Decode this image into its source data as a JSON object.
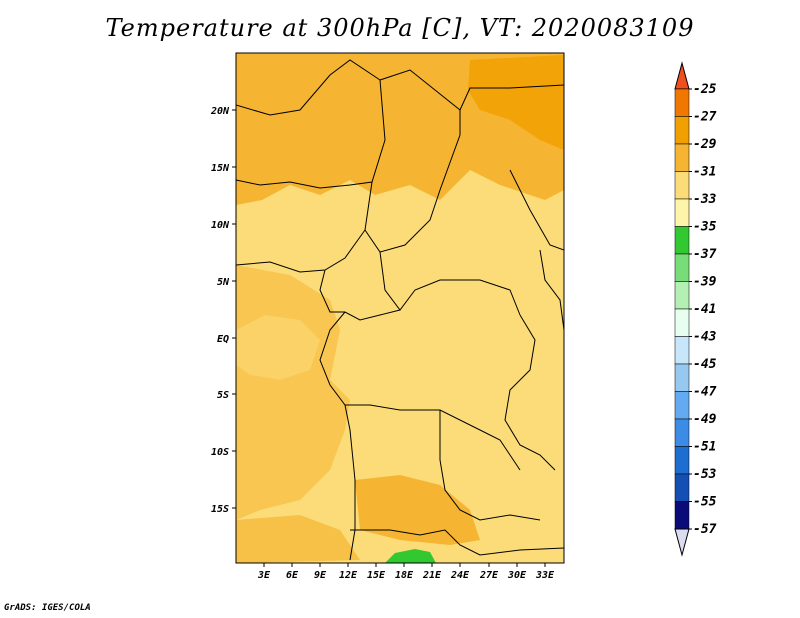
{
  "title": "Temperature at 300hPa [C], VT: 2020083109",
  "footer": "GrADS: IGES/COLA",
  "map": {
    "lat_labels": [
      "20N",
      "15N",
      "10N",
      "5N",
      "EQ",
      "5S",
      "10S",
      "15S"
    ],
    "lon_labels": [
      "3E",
      "6E",
      "9E",
      "12E",
      "15E",
      "18E",
      "21E",
      "24E",
      "27E",
      "30E",
      "33E"
    ]
  },
  "colorbar": {
    "labels": [
      "-25",
      "-27",
      "-29",
      "-31",
      "-33",
      "-35",
      "-37",
      "-39",
      "-41",
      "-43",
      "-45",
      "-47",
      "-49",
      "-51",
      "-53",
      "-55",
      "-57"
    ],
    "colors": [
      "#f0501e",
      "#f07800",
      "#f0a000",
      "#f5b432",
      "#fbdc78",
      "#fff5aa",
      "#32c832",
      "#78dc78",
      "#b4f0b4",
      "#e6fff0",
      "#c8e6fa",
      "#96c8f0",
      "#64aaf0",
      "#3c8ce6",
      "#1e6ed2",
      "#1450b4",
      "#0a0a78",
      "#dcdcf0"
    ],
    "top_arrow_color": "#f0501e",
    "bottom_arrow_color": "#dcdcf0"
  }
}
